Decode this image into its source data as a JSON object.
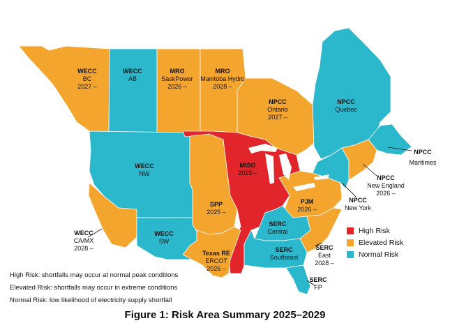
{
  "colors": {
    "high": "#e2252b",
    "elevated": "#f4a52e",
    "normal": "#2bb8cc",
    "water": "#ffffff",
    "border": "#ffffff"
  },
  "regions": {
    "wecc_bc": {
      "name": "WECC",
      "sub": "BC",
      "year": "2027 –",
      "risk": "elevated"
    },
    "wecc_ab": {
      "name": "WECC",
      "sub": "AB",
      "year": "",
      "risk": "normal"
    },
    "mro_sask": {
      "name": "MRO",
      "sub": "SaskPower",
      "year": "2026 –",
      "risk": "elevated"
    },
    "mro_manitoba": {
      "name": "MRO",
      "sub": "Manitoba Hydro",
      "year": "2028 –",
      "risk": "elevated"
    },
    "npcc_ontario": {
      "name": "NPCC",
      "sub": "Ontario",
      "year": "2027 –",
      "risk": "elevated"
    },
    "npcc_quebec": {
      "name": "NPCC",
      "sub": "Quebec",
      "year": "",
      "risk": "normal"
    },
    "npcc_maritimes": {
      "name": "NPCC",
      "sub": "Maritimes",
      "year": "",
      "risk": "normal"
    },
    "npcc_newengland": {
      "name": "NPCC",
      "sub": "New England",
      "year": "2026 –",
      "risk": "elevated"
    },
    "npcc_newyork": {
      "name": "NPCC",
      "sub": "New York",
      "year": "",
      "risk": "normal"
    },
    "wecc_nw": {
      "name": "WECC",
      "sub": "NW",
      "year": "",
      "risk": "normal"
    },
    "miso": {
      "name": "MISO",
      "sub": "2025 –",
      "year": "",
      "risk": "high"
    },
    "pjm": {
      "name": "PJM",
      "sub": "2026 –",
      "year": "",
      "risk": "elevated"
    },
    "spp": {
      "name": "SPP",
      "sub": "2025 –",
      "year": "",
      "risk": "elevated"
    },
    "wecc_camx": {
      "name": "WECC",
      "sub": "CA/MX",
      "year": "2028 –",
      "risk": "elevated"
    },
    "wecc_sw": {
      "name": "WECC",
      "sub": "SW",
      "year": "",
      "risk": "normal"
    },
    "serc_central": {
      "name": "SERC",
      "sub": "Central",
      "year": "",
      "risk": "normal"
    },
    "serc_southeast": {
      "name": "SERC",
      "sub": "Southeast",
      "year": "",
      "risk": "normal"
    },
    "serc_east": {
      "name": "SERC",
      "sub": "East",
      "year": "2028 –",
      "risk": "elevated"
    },
    "serc_fp": {
      "name": "SERC",
      "sub": "FP",
      "year": "",
      "risk": "normal"
    },
    "texas_re": {
      "name": "Texas RE",
      "sub": "ERCOT",
      "year": "2026 –",
      "risk": "elevated"
    }
  },
  "legend": {
    "high": "High Risk",
    "elevated": "Elevated Risk",
    "normal": "Normal Risk"
  },
  "notes": {
    "high": "High Risk: shortfalls may occur at normal peak conditions",
    "elevated": "Elevated Risk: shortfalls may occur in extreme conditions",
    "normal": "Normal Risk: low likelihood of electricity supply shortfall"
  },
  "caption": "Figure 1: Risk Area Summary 2025–2029"
}
